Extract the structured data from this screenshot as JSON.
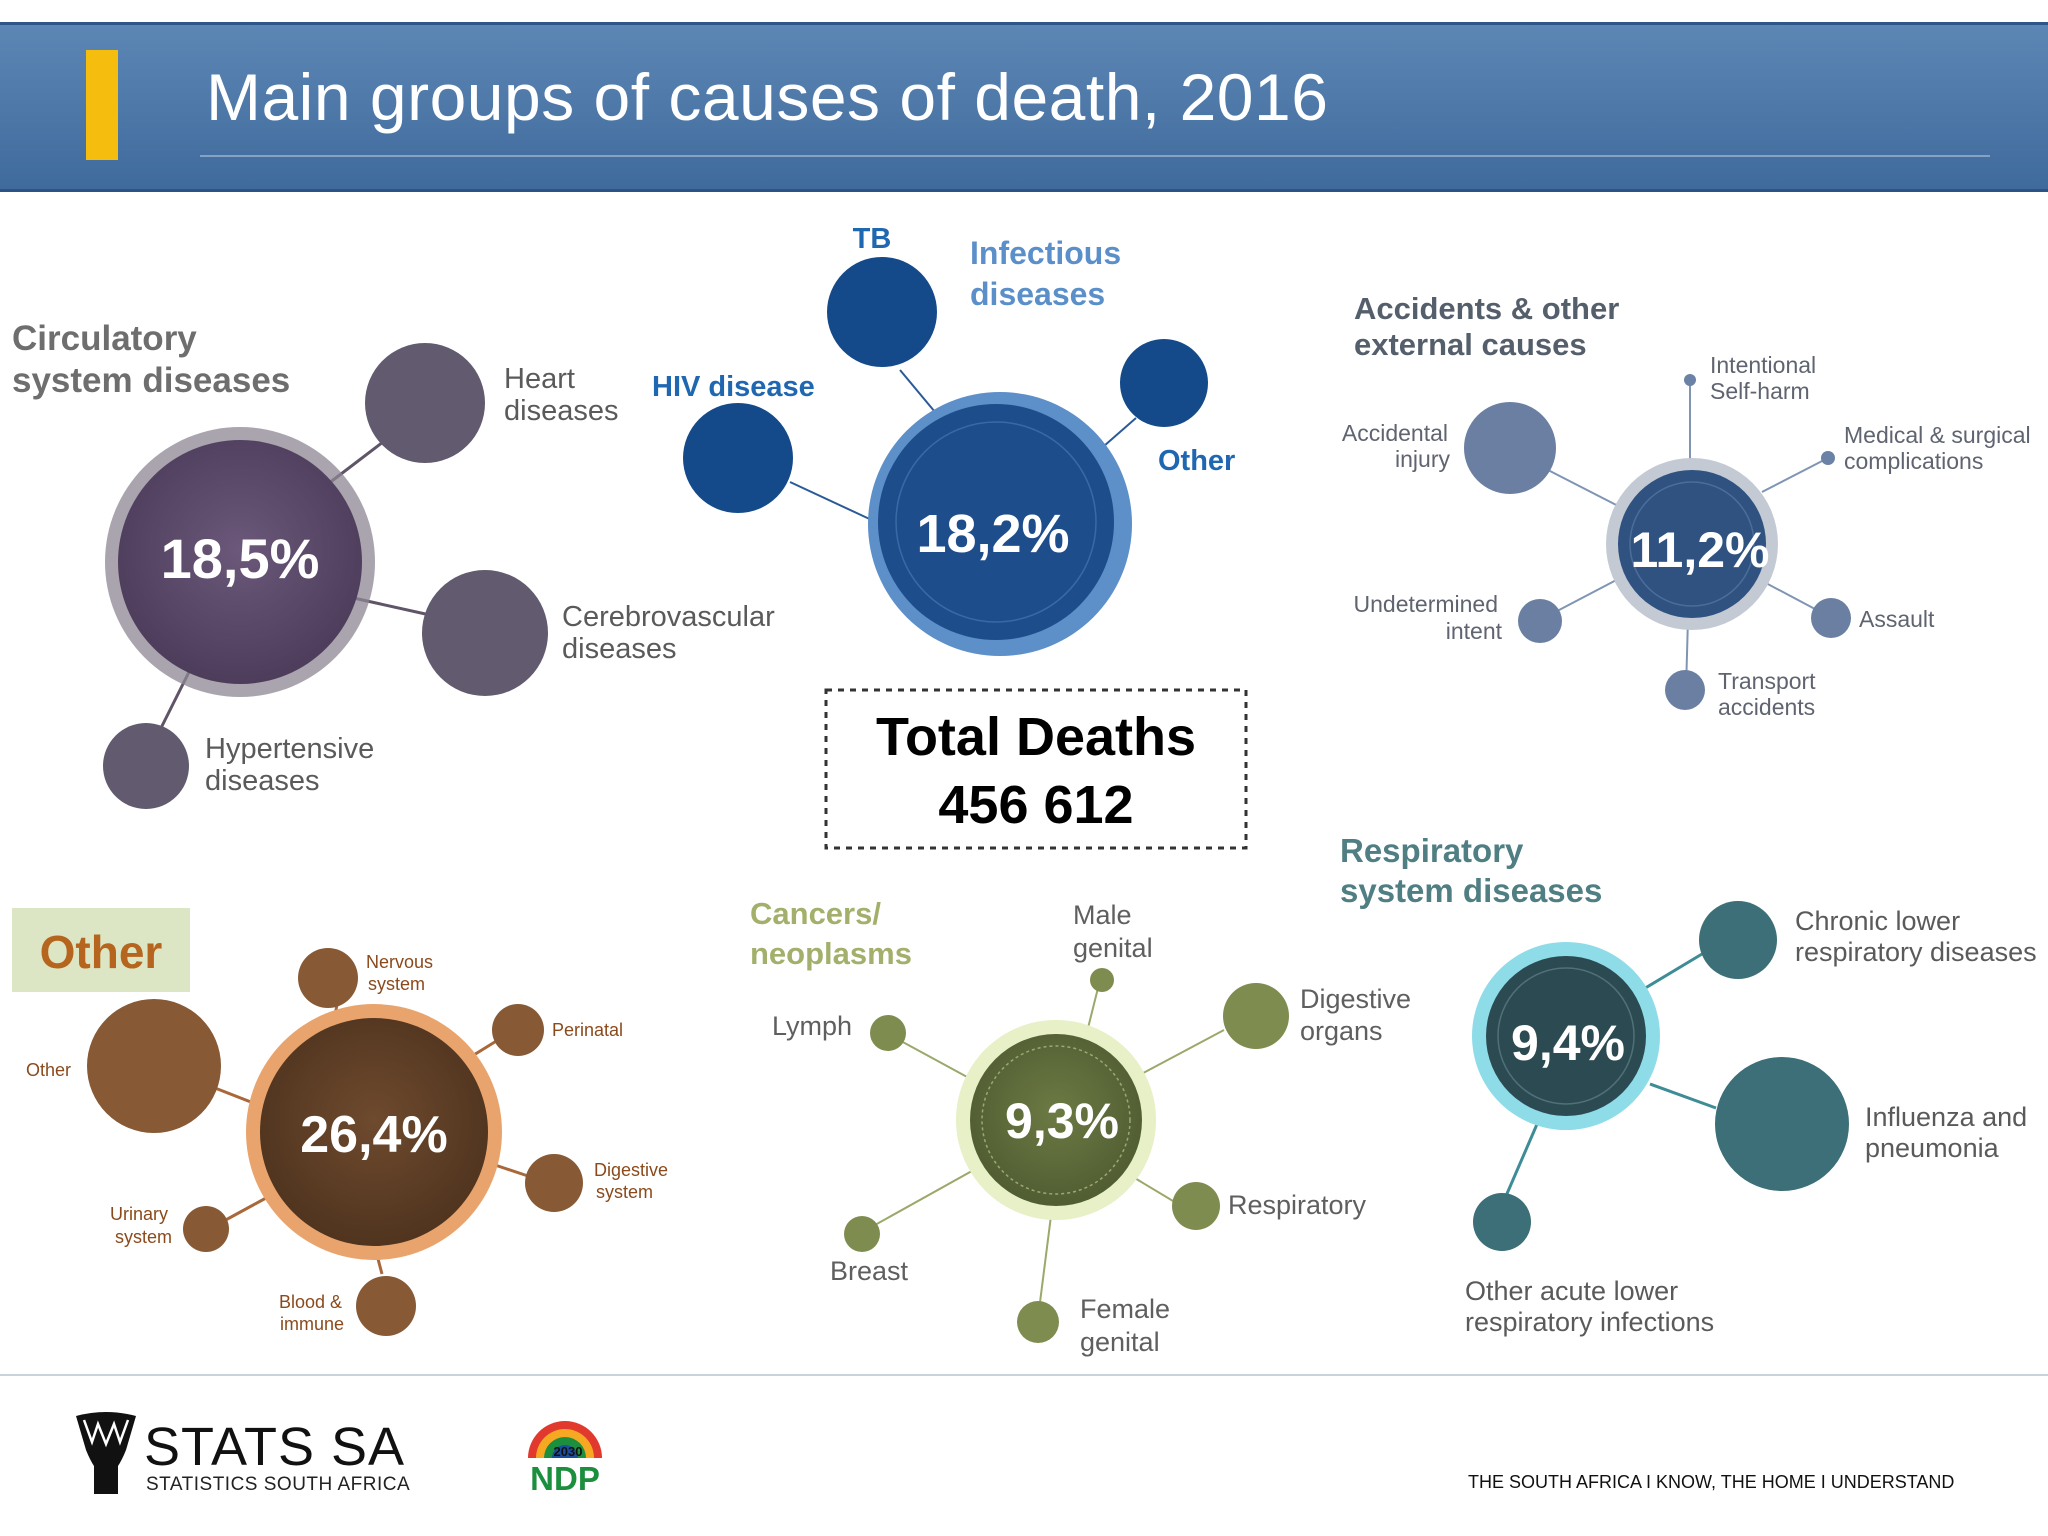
{
  "header": {
    "title": "Main groups of causes of death, 2016"
  },
  "colors": {
    "header_blue": "#4a76a8",
    "accent_yellow": "#f5bd0e",
    "circulatory": "#5a4a66",
    "infectious": "#1e4d8c",
    "accidents": "#3d5d8a",
    "other": "#7a4e2c",
    "cancers": "#5f6f3a",
    "respiratory": "#2e5a63"
  },
  "total": {
    "label": "Total Deaths",
    "value": "456 612"
  },
  "groups": {
    "circulatory": {
      "title_lines": [
        "Circulatory",
        "system diseases"
      ],
      "percent": "18,5%",
      "subs": {
        "heart": [
          "Heart",
          "diseases"
        ],
        "cerebro": [
          "Cerebrovascular",
          "diseases"
        ],
        "hyper": [
          "Hypertensive",
          "diseases"
        ]
      }
    },
    "infectious": {
      "title_lines": [
        "Infectious",
        "diseases"
      ],
      "percent": "18,2%",
      "subs": {
        "tb": "TB",
        "hiv": "HIV disease",
        "other": "Other"
      }
    },
    "accidents": {
      "title_lines": [
        "Accidents & other",
        "external causes"
      ],
      "percent": "11,2%",
      "subs": {
        "self_harm": [
          "Intentional",
          "Self-harm"
        ],
        "medical": [
          "Medical & surgical",
          "complications"
        ],
        "accidental": [
          "Accidental",
          "injury"
        ],
        "undetermined": [
          "Undetermined",
          "intent"
        ],
        "assault": "Assault",
        "transport": [
          "Transport",
          "accidents"
        ]
      }
    },
    "other": {
      "title": "Other",
      "percent": "26,4%",
      "subs": {
        "nervous": [
          "Nervous",
          "system"
        ],
        "perinatal": "Perinatal",
        "other": "Other",
        "digestive": [
          "Digestive",
          "system"
        ],
        "urinary": [
          "Urinary",
          "system"
        ],
        "blood": [
          "Blood &",
          "immune"
        ]
      }
    },
    "cancers": {
      "title_lines": [
        "Cancers/",
        "neoplasms"
      ],
      "percent": "9,3%",
      "subs": {
        "male": [
          "Male",
          "genital"
        ],
        "lymph": "Lymph",
        "digestive": [
          "Digestive",
          "organs"
        ],
        "respiratory": "Respiratory",
        "breast": "Breast",
        "female": [
          "Female",
          "genital"
        ]
      }
    },
    "respiratory": {
      "title_lines": [
        "Respiratory",
        "system diseases"
      ],
      "percent": "9,4%",
      "subs": {
        "chronic": [
          "Chronic lower",
          "respiratory diseases"
        ],
        "influenza": [
          "Influenza and",
          "pneumonia"
        ],
        "other_acute": [
          "Other acute lower",
          "respiratory infections"
        ]
      }
    }
  },
  "footer": {
    "logo_name": "STATS SA",
    "logo_sub": "STATISTICS SOUTH AFRICA",
    "ndp_year": "2030",
    "ndp_text": "NDP",
    "slogan": "THE SOUTH AFRICA I KNOW, THE HOME I UNDERSTAND"
  }
}
